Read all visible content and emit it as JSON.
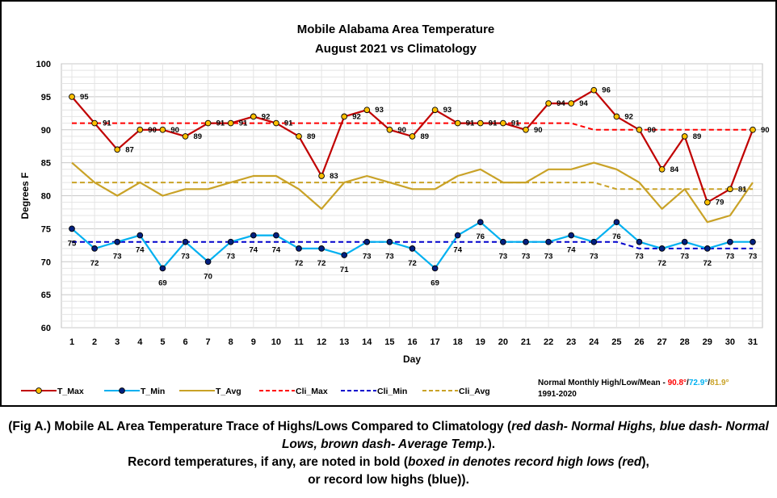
{
  "chart_data": {
    "type": "line",
    "title": "Mobile Alabama Area Temperature",
    "subtitle": "August 2021 vs Climatology",
    "xlabel": "Day",
    "ylabel": "Degrees F",
    "ylim": [
      60,
      100
    ],
    "yticks": [
      60,
      65,
      70,
      75,
      80,
      85,
      90,
      95,
      100
    ],
    "grid": true,
    "legend_position": "bottom",
    "x": [
      1,
      2,
      3,
      4,
      5,
      6,
      7,
      8,
      9,
      10,
      11,
      12,
      13,
      14,
      15,
      16,
      17,
      18,
      19,
      20,
      21,
      22,
      23,
      24,
      25,
      26,
      27,
      28,
      29,
      30,
      31
    ],
    "series": [
      {
        "name": "T_Max",
        "color": "#c00000",
        "marker_fill": "#ffc000",
        "labeled": true,
        "values": [
          95,
          91,
          87,
          90,
          90,
          89,
          91,
          91,
          92,
          91,
          89,
          83,
          92,
          93,
          90,
          89,
          93,
          91,
          91,
          91,
          90,
          94,
          94,
          96,
          92,
          90,
          84,
          89,
          79,
          81,
          90
        ]
      },
      {
        "name": "T_Min",
        "color": "#00b0f0",
        "marker_fill": "#002080",
        "labeled": true,
        "values": [
          75,
          72,
          73,
          74,
          69,
          73,
          70,
          73,
          74,
          74,
          72,
          72,
          71,
          73,
          73,
          72,
          69,
          74,
          76,
          73,
          73,
          73,
          74,
          73,
          76,
          73,
          72,
          73,
          72,
          73,
          73
        ]
      },
      {
        "name": "T_Avg",
        "color": "#c9a227",
        "labeled": false,
        "values": [
          85,
          82,
          80,
          82,
          80,
          81,
          81,
          82,
          83,
          83,
          81,
          78,
          82,
          83,
          82,
          81,
          81,
          83,
          84,
          82,
          82,
          84,
          84,
          85,
          84,
          82,
          78,
          81,
          76,
          77,
          82
        ]
      },
      {
        "name": "Cli_Max",
        "color": "#ff0000",
        "dashed": true,
        "labeled": false,
        "values": [
          91,
          91,
          91,
          91,
          91,
          91,
          91,
          91,
          91,
          91,
          91,
          91,
          91,
          91,
          91,
          91,
          91,
          91,
          91,
          91,
          91,
          91,
          91,
          90,
          90,
          90,
          90,
          90,
          90,
          90,
          90
        ]
      },
      {
        "name": "Cli_Min",
        "color": "#0000cc",
        "dashed": true,
        "labeled": false,
        "values": [
          73,
          73,
          73,
          73,
          73,
          73,
          73,
          73,
          73,
          73,
          73,
          73,
          73,
          73,
          73,
          73,
          73,
          73,
          73,
          73,
          73,
          73,
          73,
          73,
          73,
          72,
          72,
          72,
          72,
          72,
          72
        ]
      },
      {
        "name": "Cli_Avg",
        "color": "#c9a227",
        "dashed": true,
        "labeled": false,
        "values": [
          82,
          82,
          82,
          82,
          82,
          82,
          82,
          82,
          82,
          82,
          82,
          82,
          82,
          82,
          82,
          82,
          82,
          82,
          82,
          82,
          82,
          82,
          82,
          82,
          81,
          81,
          81,
          81,
          81,
          81,
          81
        ]
      }
    ]
  },
  "note": {
    "line1_prefix": "Normal Monthly High/Low/Mean - ",
    "max_val": "90.8°",
    "sep1": "/",
    "min_val": "72.9°",
    "sep2": "/",
    "avg_val": "81.9°",
    "line2": "1991-2020"
  },
  "caption": {
    "p1": "(Fig A.) Mobile AL Area Temperature Trace of Highs/Lows Compared to Climatology (",
    "p1_italic": "red dash- Normal Highs, blue dash- Normal Lows, brown dash- Average Temp.",
    "p1_end": ").",
    "p2": "Record temperatures, if any, are noted in bold (",
    "p2_italic": "boxed in denotes record high lows (red",
    "p2_mid": "),",
    "p3": "or record low highs (blue))."
  }
}
